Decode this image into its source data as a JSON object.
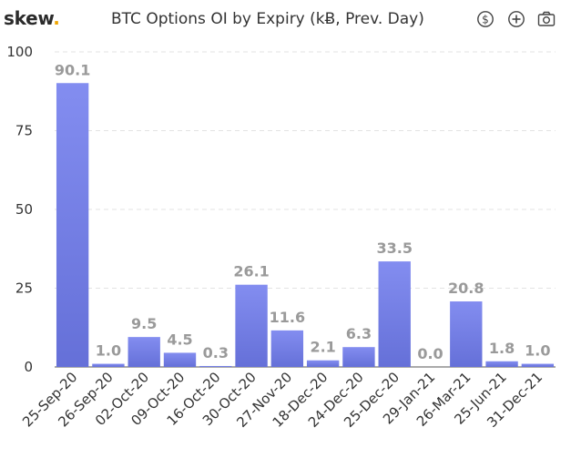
{
  "header": {
    "logo_text": "skew",
    "logo_dot": ".",
    "title": "BTC Options OI by Expiry (kɃ, Prev. Day)"
  },
  "toolbar": [
    {
      "icon": "dollar-circle-icon"
    },
    {
      "icon": "plus-circle-icon"
    },
    {
      "icon": "camera-icon"
    }
  ],
  "colors": {
    "bar_top": "#838df0",
    "bar_bottom": "#6570d8",
    "grid": "#e3e3e3",
    "axis": "#555555",
    "label": "#9a9a9a",
    "logo_dot": "#f0a500"
  },
  "chart_data": {
    "type": "bar",
    "title": "BTC Options OI by Expiry (kɃ, Prev. Day)",
    "xlabel": "",
    "ylabel": "",
    "ylim": [
      0,
      100
    ],
    "yticks": [
      "100",
      "75",
      "50",
      "25",
      "0"
    ],
    "grid": true,
    "categories": [
      "25-Sep-20",
      "26-Sep-20",
      "02-Oct-20",
      "09-Oct-20",
      "16-Oct-20",
      "30-Oct-20",
      "27-Nov-20",
      "18-Dec-20",
      "24-Dec-20",
      "25-Dec-20",
      "29-Jan-21",
      "26-Mar-21",
      "25-Jun-21",
      "31-Dec-21"
    ],
    "values": [
      90.1,
      1.0,
      9.5,
      4.5,
      0.3,
      26.1,
      11.6,
      2.1,
      6.3,
      33.5,
      0.0,
      20.8,
      1.8,
      1.0
    ],
    "labels": [
      "90.1",
      "1.0",
      "9.5",
      "4.5",
      "0.3",
      "26.1",
      "11.6",
      "2.1",
      "6.3",
      "33.5",
      "0.0",
      "20.8",
      "1.8",
      "1.0"
    ]
  }
}
